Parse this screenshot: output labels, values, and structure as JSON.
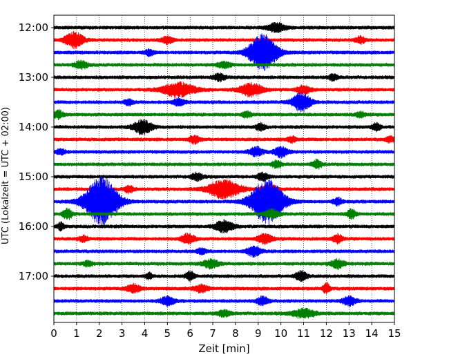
{
  "chart_data": {
    "type": "line",
    "xlabel": "Zeit  [min]",
    "ylabel": "UTC (Lokalzeit = UTC + 02:00)",
    "xlim": [
      0,
      15
    ],
    "x_ticks": [
      "0",
      "1",
      "2",
      "3",
      "4",
      "5",
      "6",
      "7",
      "8",
      "9",
      "10",
      "11",
      "12",
      "13",
      "14",
      "15"
    ],
    "y_ticks": [
      "12:00",
      "13:00",
      "14:00",
      "15:00",
      "16:00",
      "17:00"
    ],
    "grid": {
      "vertical": true,
      "style": "dotted"
    },
    "trace_interval_minutes": 15,
    "trace_count": 24,
    "colors": [
      "#000000",
      "#ff0000",
      "#0000ff",
      "#008000"
    ],
    "traces": [
      {
        "start": "12:00",
        "color": "#000000",
        "events": [
          {
            "t": 9.8,
            "amp": 6,
            "width": 0.4
          }
        ]
      },
      {
        "start": "12:15",
        "color": "#ff0000",
        "events": [
          {
            "t": 0.9,
            "amp": 11,
            "width": 0.4
          },
          {
            "t": 5.0,
            "amp": 5,
            "width": 0.25
          },
          {
            "t": 13.5,
            "amp": 5,
            "width": 0.2
          }
        ]
      },
      {
        "start": "12:30",
        "color": "#0000ff",
        "events": [
          {
            "t": 9.2,
            "amp": 26,
            "width": 0.6
          },
          {
            "t": 4.2,
            "amp": 4,
            "width": 0.2
          }
        ]
      },
      {
        "start": "12:45",
        "color": "#008000",
        "events": [
          {
            "t": 1.2,
            "amp": 5,
            "width": 0.3
          },
          {
            "t": 7.5,
            "amp": 4,
            "width": 0.3
          }
        ]
      },
      {
        "start": "13:00",
        "color": "#000000",
        "events": [
          {
            "t": 7.3,
            "amp": 5,
            "width": 0.25
          },
          {
            "t": 12.3,
            "amp": 4,
            "width": 0.2
          }
        ]
      },
      {
        "start": "13:15",
        "color": "#ff0000",
        "events": [
          {
            "t": 5.5,
            "amp": 10,
            "width": 0.7
          },
          {
            "t": 8.7,
            "amp": 9,
            "width": 0.5
          },
          {
            "t": 11.0,
            "amp": 6,
            "width": 0.3
          }
        ]
      },
      {
        "start": "13:30",
        "color": "#0000ff",
        "events": [
          {
            "t": 10.9,
            "amp": 13,
            "width": 0.4
          },
          {
            "t": 3.3,
            "amp": 4,
            "width": 0.2
          },
          {
            "t": 5.5,
            "amp": 5,
            "width": 0.25
          }
        ]
      },
      {
        "start": "13:45",
        "color": "#008000",
        "events": [
          {
            "t": 0.2,
            "amp": 6,
            "width": 0.2
          },
          {
            "t": 8.5,
            "amp": 4,
            "width": 0.2
          },
          {
            "t": 13.5,
            "amp": 4,
            "width": 0.2
          }
        ]
      },
      {
        "start": "14:00",
        "color": "#000000",
        "events": [
          {
            "t": 3.9,
            "amp": 10,
            "width": 0.4
          },
          {
            "t": 9.1,
            "amp": 5,
            "width": 0.2
          },
          {
            "t": 14.2,
            "amp": 5,
            "width": 0.2
          }
        ]
      },
      {
        "start": "14:15",
        "color": "#ff0000",
        "events": [
          {
            "t": 6.2,
            "amp": 5,
            "width": 0.25
          },
          {
            "t": 10.5,
            "amp": 4,
            "width": 0.2
          },
          {
            "t": 14.8,
            "amp": 4,
            "width": 0.2
          }
        ]
      },
      {
        "start": "14:30",
        "color": "#0000ff",
        "events": [
          {
            "t": 8.9,
            "amp": 6,
            "width": 0.3
          },
          {
            "t": 10.0,
            "amp": 7,
            "width": 0.3
          },
          {
            "t": 0.3,
            "amp": 4,
            "width": 0.2
          }
        ]
      },
      {
        "start": "14:45",
        "color": "#008000",
        "events": [
          {
            "t": 9.8,
            "amp": 5,
            "width": 0.2
          },
          {
            "t": 11.6,
            "amp": 6,
            "width": 0.2
          }
        ]
      },
      {
        "start": "15:00",
        "color": "#000000",
        "events": [
          {
            "t": 6.3,
            "amp": 5,
            "width": 0.25
          },
          {
            "t": 9.2,
            "amp": 5,
            "width": 0.25
          }
        ]
      },
      {
        "start": "15:15",
        "color": "#ff0000",
        "events": [
          {
            "t": 7.5,
            "amp": 13,
            "width": 0.7
          },
          {
            "t": 9.5,
            "amp": 8,
            "width": 0.3
          },
          {
            "t": 3.3,
            "amp": 5,
            "width": 0.2
          }
        ]
      },
      {
        "start": "15:30",
        "color": "#0000ff",
        "events": [
          {
            "t": 2.1,
            "amp": 35,
            "width": 0.7
          },
          {
            "t": 9.4,
            "amp": 32,
            "width": 0.7
          },
          {
            "t": 12.5,
            "amp": 5,
            "width": 0.2
          }
        ]
      },
      {
        "start": "15:45",
        "color": "#008000",
        "events": [
          {
            "t": 0.6,
            "amp": 7,
            "width": 0.2
          },
          {
            "t": 9.6,
            "amp": 6,
            "width": 0.3
          },
          {
            "t": 13.1,
            "amp": 6,
            "width": 0.2
          }
        ]
      },
      {
        "start": "16:00",
        "color": "#000000",
        "events": [
          {
            "t": 7.5,
            "amp": 8,
            "width": 0.4
          },
          {
            "t": 0.3,
            "amp": 5,
            "width": 0.15
          }
        ]
      },
      {
        "start": "16:15",
        "color": "#ff0000",
        "events": [
          {
            "t": 5.9,
            "amp": 7,
            "width": 0.3
          },
          {
            "t": 9.3,
            "amp": 7,
            "width": 0.3
          },
          {
            "t": 12.5,
            "amp": 6,
            "width": 0.2
          },
          {
            "t": 1.3,
            "amp": 4,
            "width": 0.2
          }
        ]
      },
      {
        "start": "16:30",
        "color": "#0000ff",
        "events": [
          {
            "t": 8.8,
            "amp": 7,
            "width": 0.3
          },
          {
            "t": 6.5,
            "amp": 4,
            "width": 0.2
          }
        ]
      },
      {
        "start": "16:45",
        "color": "#008000",
        "events": [
          {
            "t": 6.9,
            "amp": 6,
            "width": 0.35
          },
          {
            "t": 12.5,
            "amp": 6,
            "width": 0.3
          },
          {
            "t": 1.5,
            "amp": 4,
            "width": 0.2
          }
        ]
      },
      {
        "start": "17:00",
        "color": "#000000",
        "events": [
          {
            "t": 10.9,
            "amp": 7,
            "width": 0.25
          },
          {
            "t": 6.0,
            "amp": 6,
            "width": 0.2
          },
          {
            "t": 4.2,
            "amp": 4,
            "width": 0.15
          }
        ]
      },
      {
        "start": "17:15",
        "color": "#ff0000",
        "events": [
          {
            "t": 3.5,
            "amp": 6,
            "width": 0.3
          },
          {
            "t": 6.5,
            "amp": 5,
            "width": 0.3
          },
          {
            "t": 12.0,
            "amp": 7,
            "width": 0.15
          }
        ]
      },
      {
        "start": "17:30",
        "color": "#0000ff",
        "events": [
          {
            "t": 5.0,
            "amp": 6,
            "width": 0.3
          },
          {
            "t": 9.2,
            "amp": 6,
            "width": 0.25
          },
          {
            "t": 13.0,
            "amp": 6,
            "width": 0.3
          }
        ]
      },
      {
        "start": "17:45",
        "color": "#008000",
        "events": [
          {
            "t": 11.0,
            "amp": 6,
            "width": 0.5
          },
          {
            "t": 7.5,
            "amp": 4,
            "width": 0.3
          }
        ]
      }
    ]
  }
}
